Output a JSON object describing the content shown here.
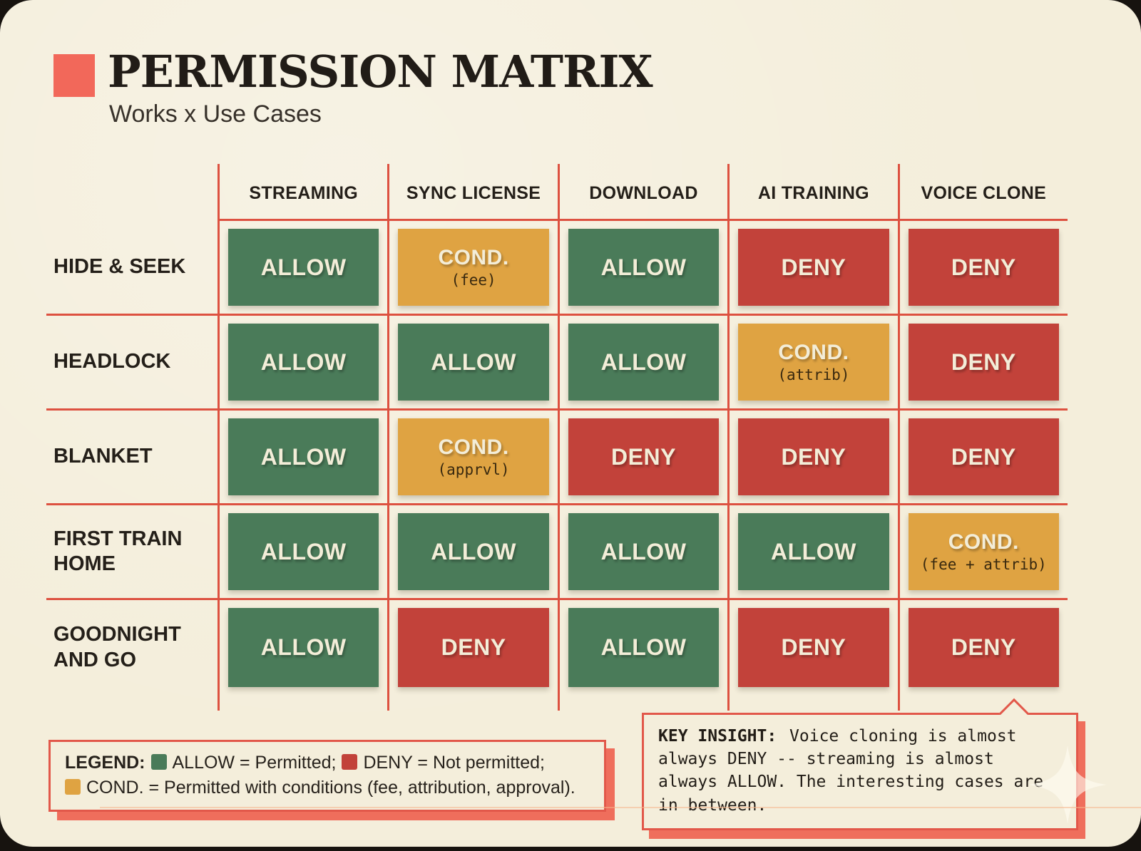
{
  "header": {
    "title": "PERMISSION MATRIX",
    "subtitle": "Works x Use Cases"
  },
  "colors": {
    "background_cream": "#f4eedb",
    "accent_coral": "#f2685a",
    "grid_line": "#dd5140",
    "allow_green": "#4a7b59",
    "deny_red": "#c2423a",
    "cond_orange": "#dfa342",
    "text_dark": "#262019",
    "cell_text_cream": "#f3edd8"
  },
  "matrix": {
    "columns": [
      "STREAMING",
      "SYNC LICENSE",
      "DOWNLOAD",
      "AI TRAINING",
      "VOICE CLONE"
    ],
    "rows": [
      {
        "label": "HIDE & SEEK",
        "cells": [
          {
            "status": "ALLOW",
            "type": "allow"
          },
          {
            "status": "COND.",
            "type": "cond",
            "condition": "(fee)"
          },
          {
            "status": "ALLOW",
            "type": "allow"
          },
          {
            "status": "DENY",
            "type": "deny"
          },
          {
            "status": "DENY",
            "type": "deny"
          }
        ]
      },
      {
        "label": "HEADLOCK",
        "cells": [
          {
            "status": "ALLOW",
            "type": "allow"
          },
          {
            "status": "ALLOW",
            "type": "allow"
          },
          {
            "status": "ALLOW",
            "type": "allow"
          },
          {
            "status": "COND.",
            "type": "cond",
            "condition": "(attrib)"
          },
          {
            "status": "DENY",
            "type": "deny"
          }
        ]
      },
      {
        "label": "BLANKET",
        "cells": [
          {
            "status": "ALLOW",
            "type": "allow"
          },
          {
            "status": "COND.",
            "type": "cond",
            "condition": "(apprvl)"
          },
          {
            "status": "DENY",
            "type": "deny"
          },
          {
            "status": "DENY",
            "type": "deny"
          },
          {
            "status": "DENY",
            "type": "deny"
          }
        ]
      },
      {
        "label": "FIRST TRAIN HOME",
        "cells": [
          {
            "status": "ALLOW",
            "type": "allow"
          },
          {
            "status": "ALLOW",
            "type": "allow"
          },
          {
            "status": "ALLOW",
            "type": "allow"
          },
          {
            "status": "ALLOW",
            "type": "allow"
          },
          {
            "status": "COND.",
            "type": "cond",
            "condition": "(fee + attrib)"
          }
        ]
      },
      {
        "label": "GOODNIGHT AND GO",
        "cells": [
          {
            "status": "ALLOW",
            "type": "allow"
          },
          {
            "status": "DENY",
            "type": "deny"
          },
          {
            "status": "ALLOW",
            "type": "allow"
          },
          {
            "status": "DENY",
            "type": "deny"
          },
          {
            "status": "DENY",
            "type": "deny"
          }
        ]
      }
    ]
  },
  "legend": {
    "title": "LEGEND:",
    "items": [
      {
        "type": "allow",
        "label": "ALLOW = Permitted;"
      },
      {
        "type": "deny",
        "label": "DENY = Not permitted;"
      },
      {
        "type": "cond",
        "label": "COND. = Permitted with conditions (fee, attribution, approval)."
      }
    ]
  },
  "key_insight": {
    "title": "KEY INSIGHT:",
    "text": "Voice cloning is almost always DENY -- streaming is almost always ALLOW. The interesting cases are in between."
  },
  "icons": {
    "title_accent": "coral-square",
    "bottom_right": "sparkle-icon"
  },
  "chart_data": {
    "type": "heatmap",
    "title": "PERMISSION MATRIX",
    "subtitle": "Works x Use Cases",
    "columns": [
      "STREAMING",
      "SYNC LICENSE",
      "DOWNLOAD",
      "AI TRAINING",
      "VOICE CLONE"
    ],
    "rows": [
      "HIDE & SEEK",
      "HEADLOCK",
      "BLANKET",
      "FIRST TRAIN HOME",
      "GOODNIGHT AND GO"
    ],
    "values": [
      [
        "ALLOW",
        "COND. (fee)",
        "ALLOW",
        "DENY",
        "DENY"
      ],
      [
        "ALLOW",
        "ALLOW",
        "ALLOW",
        "COND. (attrib)",
        "DENY"
      ],
      [
        "ALLOW",
        "COND. (apprvl)",
        "DENY",
        "DENY",
        "DENY"
      ],
      [
        "ALLOW",
        "ALLOW",
        "ALLOW",
        "ALLOW",
        "COND. (fee + attrib)"
      ],
      [
        "ALLOW",
        "DENY",
        "ALLOW",
        "DENY",
        "DENY"
      ]
    ],
    "value_colors": {
      "ALLOW": "#4a7b59",
      "DENY": "#c2423a",
      "COND.": "#dfa342"
    },
    "legend_position": "bottom-left",
    "annotation": "KEY INSIGHT: Voice cloning is almost always DENY -- streaming is almost always ALLOW. The interesting cases are in between."
  }
}
